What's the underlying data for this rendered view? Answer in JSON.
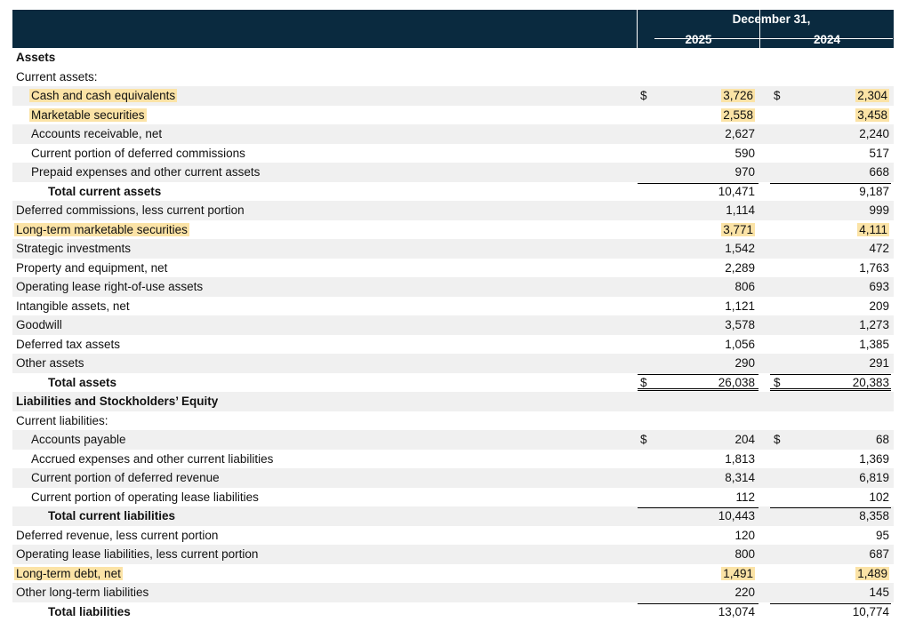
{
  "header": {
    "period_label": "December 31,",
    "year_current": "2025",
    "year_prior": "2024"
  },
  "rows": [
    {
      "label": "Assets",
      "level": 0,
      "bold": true,
      "shade": false
    },
    {
      "label": "Current assets:",
      "level": 0,
      "shade": false
    },
    {
      "label": "Cash and cash equivalents",
      "level": 1,
      "shade": true,
      "highlight": true,
      "cur25": "$",
      "v25": "3,726",
      "cur24": "$",
      "v24": "2,304",
      "hl25": true,
      "hl24": true
    },
    {
      "label": "Marketable securities",
      "level": 1,
      "shade": false,
      "highlight": true,
      "v25": "2,558",
      "v24": "3,458",
      "hl25": true,
      "hl24": true
    },
    {
      "label": "Accounts receivable, net",
      "level": 1,
      "shade": true,
      "v25": "2,627",
      "v24": "2,240"
    },
    {
      "label": "Current portion of deferred commissions",
      "level": 1,
      "shade": false,
      "v25": "590",
      "v24": "517"
    },
    {
      "label": "Prepaid expenses and other current assets",
      "level": 1,
      "shade": true,
      "v25": "970",
      "v24": "668"
    },
    {
      "label": "Total current assets",
      "level": 2,
      "bold": true,
      "shade": false,
      "rule": "top",
      "v25": "10,471",
      "v24": "9,187"
    },
    {
      "label": "Deferred commissions, less current portion",
      "level": 0,
      "shade": true,
      "v25": "1,114",
      "v24": "999"
    },
    {
      "label": "Long-term marketable securities",
      "level": 0,
      "shade": false,
      "highlight": true,
      "v25": "3,771",
      "v24": "4,111",
      "hl25": true,
      "hl24": true
    },
    {
      "label": "Strategic investments",
      "level": 0,
      "shade": true,
      "v25": "1,542",
      "v24": "472"
    },
    {
      "label": "Property and equipment, net",
      "level": 0,
      "shade": false,
      "v25": "2,289",
      "v24": "1,763"
    },
    {
      "label": "Operating lease right-of-use assets",
      "level": 0,
      "shade": true,
      "v25": "806",
      "v24": "693"
    },
    {
      "label": "Intangible assets, net",
      "level": 0,
      "shade": false,
      "v25": "1,121",
      "v24": "209"
    },
    {
      "label": "Goodwill",
      "level": 0,
      "shade": true,
      "v25": "3,578",
      "v24": "1,273"
    },
    {
      "label": "Deferred tax assets",
      "level": 0,
      "shade": false,
      "v25": "1,056",
      "v24": "1,385"
    },
    {
      "label": "Other assets",
      "level": 0,
      "shade": true,
      "v25": "290",
      "v24": "291"
    },
    {
      "label": "Total assets",
      "level": 2,
      "bold": true,
      "shade": false,
      "rule": "both",
      "cur25": "$",
      "v25": "26,038",
      "cur24": "$",
      "v24": "20,383"
    },
    {
      "label": "Liabilities and Stockholders’ Equity",
      "level": 0,
      "bold": true,
      "shade": true
    },
    {
      "label": "Current liabilities:",
      "level": 0,
      "shade": false
    },
    {
      "label": "Accounts payable",
      "level": 1,
      "shade": true,
      "cur25": "$",
      "v25": "204",
      "cur24": "$",
      "v24": "68"
    },
    {
      "label": "Accrued expenses and other current liabilities",
      "level": 1,
      "shade": false,
      "v25": "1,813",
      "v24": "1,369"
    },
    {
      "label": "Current portion of deferred revenue",
      "level": 1,
      "shade": true,
      "v25": "8,314",
      "v24": "6,819"
    },
    {
      "label": "Current portion of operating lease liabilities",
      "level": 1,
      "shade": false,
      "v25": "112",
      "v24": "102"
    },
    {
      "label": "Total current liabilities",
      "level": 2,
      "bold": true,
      "shade": true,
      "rule": "top",
      "v25": "10,443",
      "v24": "8,358"
    },
    {
      "label": "Deferred revenue, less current portion",
      "level": 0,
      "shade": false,
      "v25": "120",
      "v24": "95"
    },
    {
      "label": "Operating lease liabilities, less current portion",
      "level": 0,
      "shade": true,
      "v25": "800",
      "v24": "687"
    },
    {
      "label": "Long-term debt, net",
      "level": 0,
      "shade": false,
      "highlight": true,
      "v25": "1,491",
      "v24": "1,489",
      "hl25": true,
      "hl24": true
    },
    {
      "label": "Other long-term liabilities",
      "level": 0,
      "shade": true,
      "v25": "220",
      "v24": "145"
    },
    {
      "label": "Total liabilities",
      "level": 2,
      "bold": true,
      "shade": false,
      "rule": "top",
      "v25": "13,074",
      "v24": "10,774"
    }
  ]
}
